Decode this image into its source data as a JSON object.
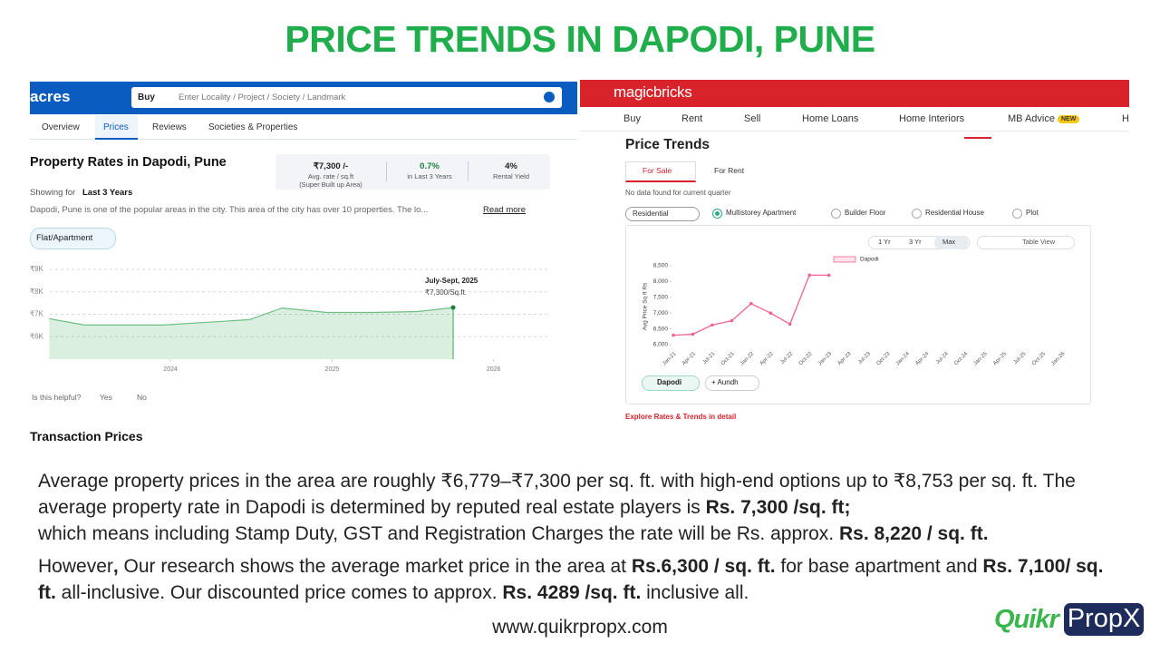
{
  "title": "PRICE TRENDS IN DAPODI, PUNE",
  "left_panel": {
    "logo": "acres",
    "search_mode": "Buy",
    "search_placeholder": "Enter Locality / Project / Society / Landmark",
    "tabs": [
      "Overview",
      "Prices",
      "Reviews",
      "Societies & Properties"
    ],
    "heading": "Property Rates in Dapodi, Pune",
    "showing_label": "Showing for",
    "showing_value": "Last 3 Years",
    "stats": [
      {
        "value": "₹7,300 /-",
        "label": "Avg. rate / sq.ft",
        "note": "(Super Built up Area)"
      },
      {
        "value": "0.7%",
        "label": "in Last 3 Years"
      },
      {
        "value": "4%",
        "label": "Rental Yield"
      }
    ],
    "description": "Dapodi, Pune is one of the popular areas in the city. This area of the city has over 10 properties. The lo...",
    "read_more": "Read more",
    "filter": "Flat/Apartment",
    "chart": {
      "type": "area",
      "color": "#3aa757",
      "x": [
        2023.25,
        2023.47,
        2023.95,
        2024.49,
        2024.69,
        2024.97,
        2025.25,
        2025.53,
        2025.75
      ],
      "values": [
        6800,
        6520,
        6520,
        6760,
        7280,
        7080,
        7080,
        7120,
        7300
      ],
      "xlim": [
        2023.13,
        2026.35
      ],
      "ylim": [
        5000,
        9000
      ],
      "xticks": [
        2024,
        2025,
        2026
      ],
      "yticks": [
        {
          "value": 6000,
          "label": "₹6K"
        },
        {
          "value": 7000,
          "label": "₹7K"
        },
        {
          "value": 8000,
          "label": "₹8K"
        },
        {
          "value": 9000,
          "label": "₹9K"
        }
      ],
      "grid": true,
      "tooltip_title": "July-Sept, 2025",
      "tooltip_value": "₹7,300/Sq.ft."
    },
    "helpful": "Is this helpful?",
    "yes": "Yes",
    "no": "No",
    "section": "Transaction Prices"
  },
  "right_panel": {
    "brand": "magicbricks",
    "nav": [
      "Buy",
      "Rent",
      "Sell",
      "Home Loans",
      "Home Interiors",
      "MB Advice",
      "H"
    ],
    "badge": "NEW",
    "heading": "Price Trends",
    "tabs": [
      "For Sale",
      "For Rent"
    ],
    "note": "No data found for current quarter",
    "dropdown": "Residential",
    "radios": [
      "Multistorey Apartment",
      "Builder Floor",
      "Residential House",
      "Plot"
    ],
    "ranges": [
      "1 Yr",
      "3 Yr",
      "Max"
    ],
    "table_view": "Table View",
    "chart": {
      "type": "line",
      "y_label": "Avg Price Sq ft Rs",
      "categories": [
        "Jan-21",
        "Apr-21",
        "Jul-21",
        "Oct-21",
        "Jan-22",
        "Apr-22",
        "Jul-22",
        "Oct-22",
        "Jan-23",
        "Apr-23",
        "Jul-23",
        "Oct-23",
        "Jan-24",
        "Apr-24",
        "Jul-24",
        "Oct-24",
        "Jan-25",
        "Apr-25",
        "Jul-25",
        "Oct-25",
        "Jan-26"
      ],
      "series": [
        {
          "name": "Dapodi",
          "color": "#f06292",
          "values": [
            6300,
            6330,
            6620,
            6760,
            7300,
            7000,
            6650,
            8200,
            8200,
            null,
            null,
            null,
            null,
            null,
            null,
            null,
            null,
            null,
            null,
            null,
            null
          ]
        }
      ],
      "ylim": [
        6000,
        8500
      ],
      "yticks": [
        {
          "value": 6000,
          "label": "6,000"
        },
        {
          "value": 6500,
          "label": "6,500"
        },
        {
          "value": 7000,
          "label": "7,000"
        },
        {
          "value": 7500,
          "label": "7,500"
        },
        {
          "value": 8000,
          "label": "8,000"
        },
        {
          "value": 8500,
          "label": "8,500"
        }
      ]
    },
    "chips": [
      "Dapodi",
      "+ Aundh"
    ],
    "link": "Explore Rates & Trends in detail"
  },
  "paragraphs": [
    [
      {
        "text": "Average property prices in the area are roughly ₹6,779–₹7,300 per sq. ft. with high-end options up to ₹8,753 per sq. ft. The average property rate in Dapodi is determined by reputed real estate players is "
      },
      {
        "text": "Rs. 7,300 /sq. ft;",
        "bold": true
      }
    ],
    [
      {
        "text": "which means including Stamp Duty, GST and Registration Charges  the rate will be Rs. approx. "
      },
      {
        "text": "Rs. 8,220 / sq. ft.",
        "bold": true
      }
    ],
    [
      {
        "text": "However"
      },
      {
        "text": ", ",
        "bold": true
      },
      {
        "text": "Our research shows the average market price in the area at "
      },
      {
        "text": "Rs.6,300 / sq. ft.",
        "bold": true
      },
      {
        "text": " for base apartment and "
      },
      {
        "text": "Rs. 7,100/ sq. ft.",
        "bold": true
      },
      {
        "text": " all-inclusive. Our discounted price comes to approx. "
      },
      {
        "text": "Rs. 4289 /sq. ft.",
        "bold": true
      },
      {
        "text": " inclusive all."
      }
    ]
  ],
  "footer": "www.quikrpropx.com",
  "logo": {
    "part1": "Quikr",
    "part2": "PropX"
  }
}
